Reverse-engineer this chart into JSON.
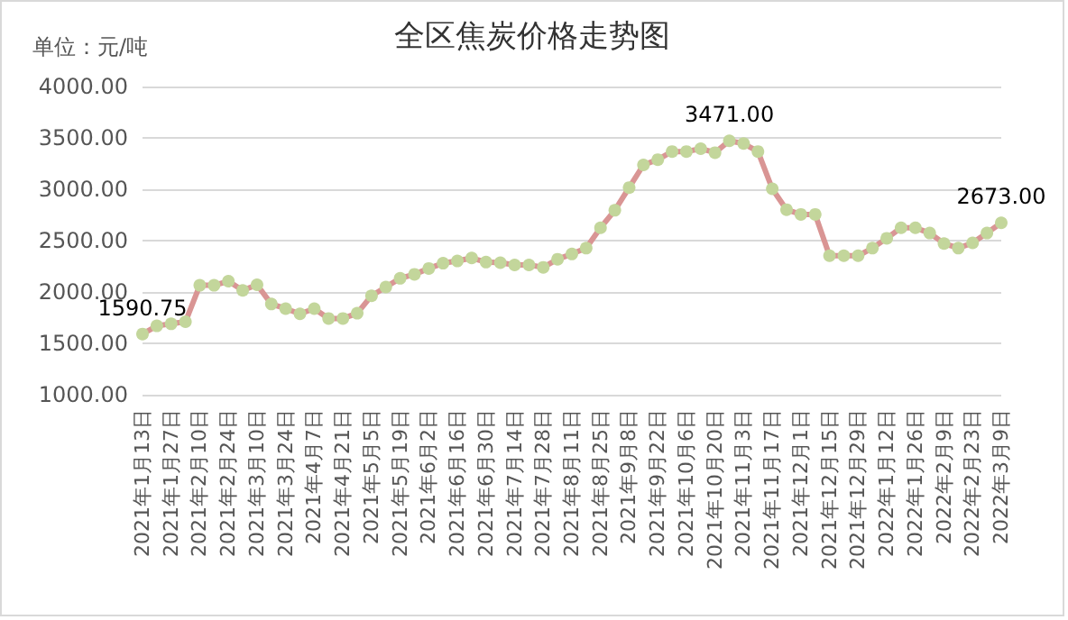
{
  "chart_data": {
    "type": "line",
    "title": "全区焦炭价格走势图",
    "ylabel": "单位：元/吨",
    "categories": [
      "2021年1月13日",
      null,
      "2021年1月27日",
      null,
      "2021年2月10日",
      null,
      "2021年2月24日",
      null,
      "2021年3月10日",
      null,
      "2021年3月24日",
      null,
      "2021年4月7日",
      null,
      "2021年4月21日",
      null,
      "2021年5月5日",
      null,
      "2021年5月19日",
      null,
      "2021年6月2日",
      null,
      "2021年6月16日",
      null,
      "2021年6月30日",
      null,
      "2021年7月14日",
      null,
      "2021年7月28日",
      null,
      "2021年8月11日",
      null,
      "2021年8月25日",
      null,
      "2021年9月8日",
      null,
      "2021年9月22日",
      null,
      "2021年10月6日",
      null,
      "2021年10月20日",
      null,
      "2021年11月3日",
      null,
      "2021年11月17日",
      null,
      "2021年12月1日",
      null,
      "2021年12月15日",
      null,
      "2021年12月29日",
      null,
      "2022年1月12日",
      null,
      "2022年1月26日",
      null,
      "2022年2月9日",
      null,
      "2022年2月23日",
      null,
      "2022年3月9日"
    ],
    "series": [
      {
        "color": "#d99594",
        "values": [
          1590.75,
          1670,
          1690,
          1710,
          2065,
          2065,
          2105,
          2015,
          2070,
          1883,
          1838,
          1787,
          1838,
          1742,
          1742,
          1793,
          1963,
          2048,
          2133,
          2172,
          2229,
          2280,
          2302,
          2331,
          2291,
          2285,
          2263,
          2263,
          2240,
          2319,
          2370,
          2427,
          2625,
          2795,
          3016,
          3237,
          3288,
          3367,
          3367,
          3395,
          3356,
          3471,
          3445,
          3367,
          3004,
          2801,
          2755,
          2755,
          2353,
          2353,
          2353,
          2427,
          2523,
          2625,
          2625,
          2574,
          2472,
          2427,
          2478,
          2574,
          2673
        ],
        "value_labels": [
          "1590.75",
          null,
          null,
          null,
          null,
          null,
          null,
          null,
          null,
          null,
          null,
          null,
          null,
          null,
          null,
          null,
          null,
          null,
          null,
          null,
          null,
          null,
          null,
          null,
          null,
          null,
          null,
          null,
          null,
          null,
          null,
          null,
          null,
          null,
          null,
          null,
          null,
          null,
          null,
          null,
          null,
          "3471.00",
          null,
          null,
          null,
          null,
          null,
          null,
          null,
          null,
          null,
          null,
          null,
          null,
          null,
          null,
          null,
          null,
          null,
          null,
          "2673.00"
        ]
      }
    ],
    "ylim": [
      1000,
      4000
    ],
    "yticks": [
      {
        "value": 1000,
        "label": "1000.00"
      },
      {
        "value": 1500,
        "label": "1500.00"
      },
      {
        "value": 2000,
        "label": "2000.00"
      },
      {
        "value": 2500,
        "label": "2500.00"
      },
      {
        "value": 3000,
        "label": "3000.00"
      },
      {
        "value": 3500,
        "label": "3500.00"
      },
      {
        "value": 4000,
        "label": "4000.00"
      }
    ],
    "grid": "y",
    "marker": "circle",
    "line_style": "solid"
  }
}
